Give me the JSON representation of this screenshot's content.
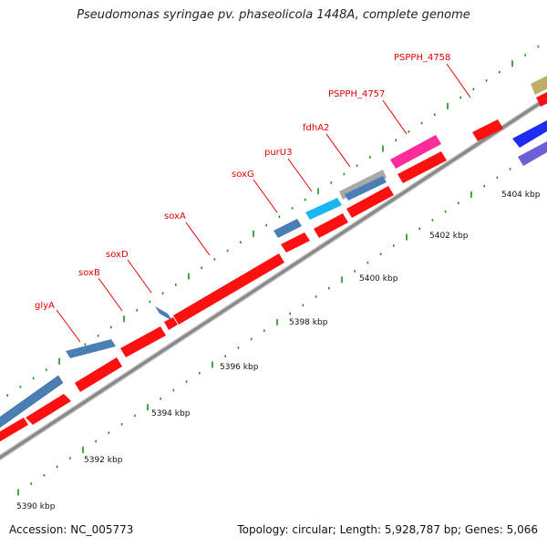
{
  "title": "Pseudomonas syringae pv. phaseolicola 1448A, complete genome",
  "footer": {
    "accession": "Accession: NC_005773",
    "summary": "Topology: circular; Length: 5,928,787 bp; Genes: 5,066"
  },
  "colors": {
    "backbone": "#8a8a8a",
    "tick": "#1c8a1c",
    "label": "#e30000",
    "cds_red": "#ff1010",
    "steel_blue": "#4a7fb5",
    "cyan": "#19b6f0",
    "gray": "#a9a9a9",
    "pink": "#ff2a9c",
    "khaki": "#bfae6a",
    "blue": "#1e2bf0",
    "purple": "#6a5fd6"
  },
  "kbp_labels": [
    {
      "text": "5390 kbp",
      "pos": 5390
    },
    {
      "text": "5392 kbp",
      "pos": 5392
    },
    {
      "text": "5394 kbp",
      "pos": 5394
    },
    {
      "text": "5396 kbp",
      "pos": 5396
    },
    {
      "text": "5398 kbp",
      "pos": 5398
    },
    {
      "text": "5400 kbp",
      "pos": 5400
    },
    {
      "text": "5402 kbp",
      "pos": 5402
    },
    {
      "text": "5404 kbp",
      "pos": 5404
    }
  ],
  "gene_labels": [
    {
      "text": "glyA",
      "pos": 5392.7
    },
    {
      "text": "soxB",
      "pos": 5393.9
    },
    {
      "text": "soxD",
      "pos": 5394.7
    },
    {
      "text": "soxA",
      "pos": 5396.1
    },
    {
      "text": "soxG",
      "pos": 5397.8
    },
    {
      "text": "purU3",
      "pos": 5398.8
    },
    {
      "text": "fdhA2",
      "pos": 5399.8
    },
    {
      "text": "PSPPH_4757",
      "pos": 5400.7
    },
    {
      "text": "PSPPH_4758",
      "pos": 5401.6
    }
  ]
}
